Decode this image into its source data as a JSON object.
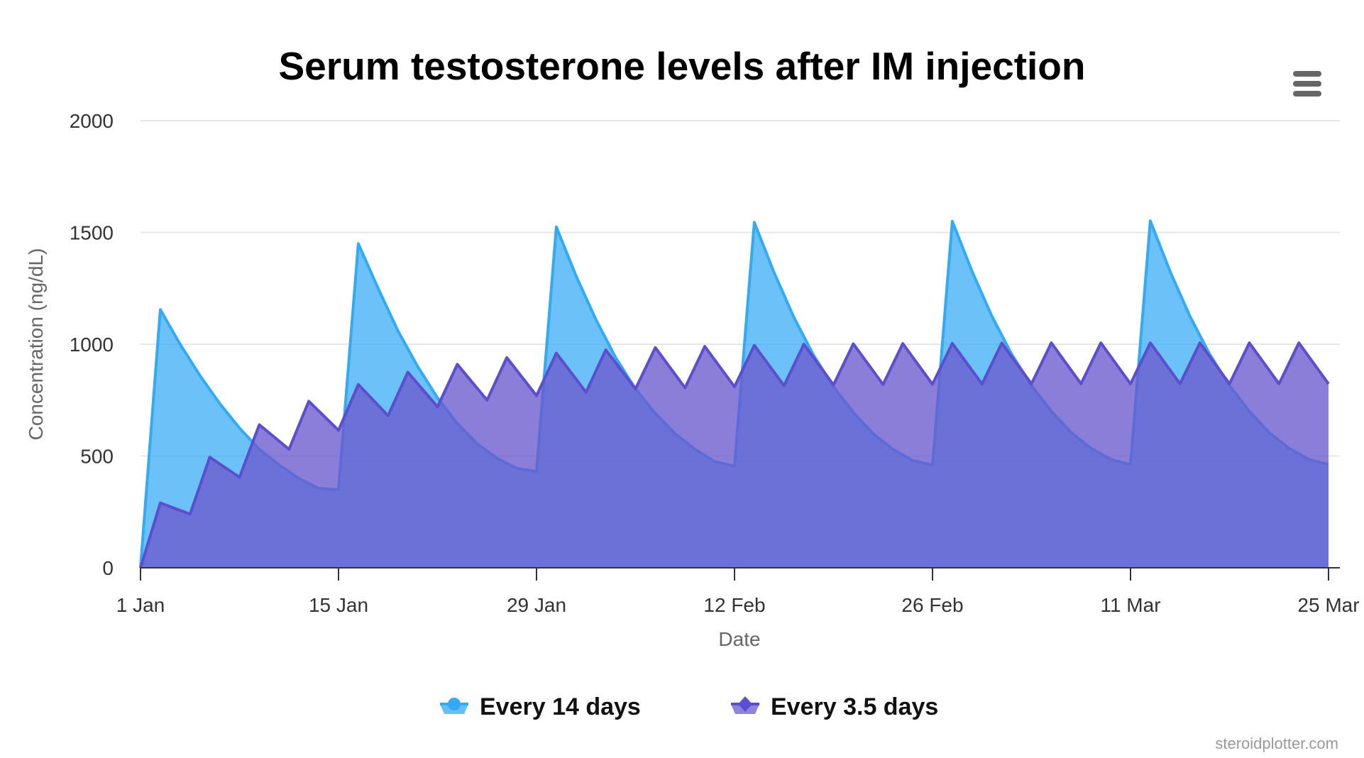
{
  "chart_data": {
    "type": "area",
    "title": "Serum testosterone levels after IM injection",
    "xlabel": "Date",
    "ylabel": "Concentration (ng/dL)",
    "ylim": [
      0,
      2000
    ],
    "yticks": [
      0,
      500,
      1000,
      1500,
      2000
    ],
    "xlim": [
      0,
      84
    ],
    "xticks": [
      {
        "day": 0,
        "label": "1 Jan"
      },
      {
        "day": 14,
        "label": "15 Jan"
      },
      {
        "day": 28,
        "label": "29 Jan"
      },
      {
        "day": 42,
        "label": "12 Feb"
      },
      {
        "day": 56,
        "label": "26 Feb"
      },
      {
        "day": 70,
        "label": "11 Mar"
      },
      {
        "day": 84,
        "label": "25 Mar"
      }
    ],
    "grid": true,
    "legend_position": "bottom",
    "series": [
      {
        "name": "Every 14 days",
        "color": "#33aaf5",
        "fill": "#33aaf5",
        "marker": "circle",
        "interval_days": 14,
        "x": [
          0,
          1.4,
          2.8,
          4.2,
          5.6,
          7,
          8.4,
          9.8,
          11.2,
          12.6,
          14,
          15.4,
          16.8,
          18.2,
          19.6,
          21,
          22.4,
          23.8,
          25.2,
          26.6,
          28,
          29.4,
          30.8,
          32.2,
          33.6,
          35,
          36.4,
          37.8,
          39.2,
          40.6,
          42,
          43.4,
          44.8,
          46.2,
          47.6,
          49,
          50.4,
          51.8,
          53.2,
          54.6,
          56,
          57.4,
          58.8,
          60.2,
          61.6,
          63,
          64.4,
          65.8,
          67.2,
          68.6,
          70,
          71.4,
          72.8,
          74.2,
          75.6,
          77,
          78.4,
          79.8,
          81.2,
          82.6,
          84
        ],
        "values": [
          0,
          1155,
          1000,
          860,
          735,
          625,
          530,
          460,
          400,
          355,
          350,
          1450,
          1250,
          1060,
          900,
          760,
          645,
          555,
          490,
          445,
          430,
          1525,
          1305,
          1110,
          940,
          800,
          690,
          600,
          530,
          475,
          455,
          1545,
          1320,
          1120,
          950,
          810,
          695,
          600,
          530,
          480,
          460,
          1550,
          1325,
          1125,
          955,
          815,
          700,
          605,
          535,
          485,
          462,
          1552,
          1325,
          1125,
          955,
          815,
          700,
          605,
          535,
          485,
          462
        ]
      },
      {
        "name": "Every 3.5 days",
        "color": "#5c4fcf",
        "fill": "#6a5acd",
        "marker": "diamond",
        "interval_days": 3.5,
        "x": [
          0,
          1.4,
          3.5,
          4.9,
          7,
          8.4,
          10.5,
          11.9,
          14,
          15.4,
          17.5,
          18.9,
          21,
          22.4,
          24.5,
          25.9,
          28,
          29.4,
          31.5,
          32.9,
          35,
          36.4,
          38.5,
          39.9,
          42,
          43.4,
          45.5,
          46.9,
          49,
          50.4,
          52.5,
          53.9,
          56,
          57.4,
          59.5,
          60.9,
          63,
          64.4,
          66.5,
          67.9,
          70,
          71.4,
          73.5,
          74.9,
          77,
          78.4,
          80.5,
          81.9,
          84
        ],
        "values": [
          0,
          290,
          240,
          495,
          405,
          640,
          530,
          745,
          615,
          820,
          680,
          875,
          720,
          910,
          750,
          940,
          770,
          960,
          785,
          975,
          800,
          985,
          805,
          990,
          810,
          995,
          815,
          1000,
          818,
          1002,
          820,
          1003,
          821,
          1004,
          822,
          1005,
          823,
          1006,
          823,
          1006,
          823,
          1006,
          823,
          1006,
          823,
          1006,
          823,
          1006,
          823
        ]
      }
    ],
    "credit": "steroidplotter.com"
  },
  "menu": {
    "icon": "hamburger-menu-icon"
  }
}
